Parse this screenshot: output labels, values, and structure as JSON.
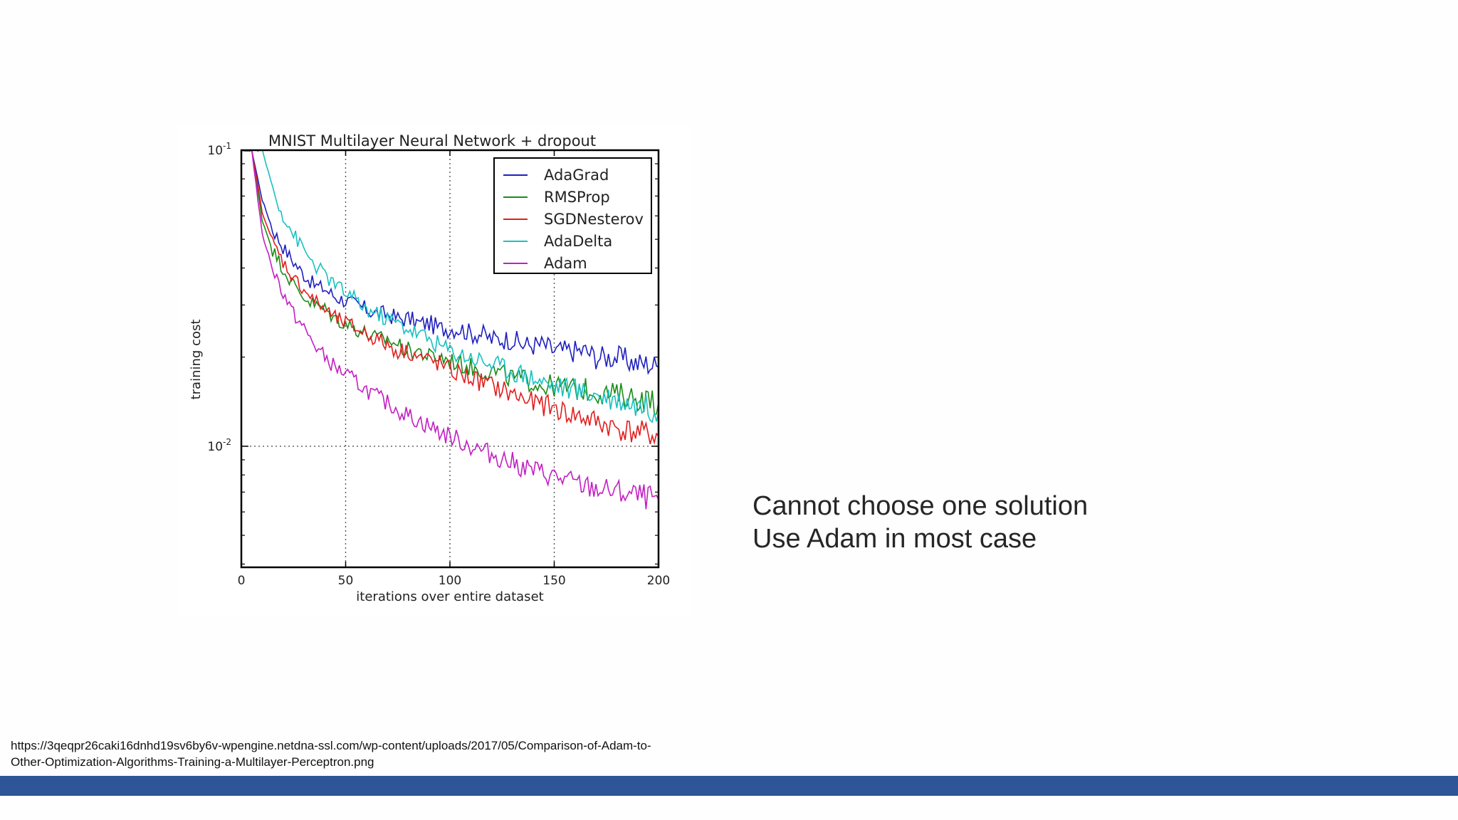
{
  "slide": {
    "bullets": [
      "Cannot choose one solution",
      "Use Adam in most case"
    ],
    "source_lines": [
      "https://3qeqpr26caki16dnhd19sv6by6v-wpengine.netdna-ssl.com/wp-content/uploads/2017/05/Comparison-of-Adam-to-",
      "Other-Optimization-Algorithms-Training-a-Multilayer-Perceptron.png"
    ],
    "colors": {
      "footer_bar": "#2d5597",
      "text": "#262626"
    }
  },
  "chart_data": {
    "type": "line",
    "title": "MNIST Multilayer Neural Network + dropout",
    "xlabel": "iterations over entire dataset",
    "ylabel": "training cost",
    "xlim": [
      0,
      200
    ],
    "ylim": [
      0.0039,
      0.1
    ],
    "yscale": "log",
    "x_ticks": [
      0,
      50,
      100,
      150,
      200
    ],
    "x_tick_labels": [
      "0",
      "50",
      "100",
      "150",
      "200"
    ],
    "y_ticks": [
      0.1,
      0.01
    ],
    "y_tick_labels": [
      {
        "base": "10",
        "exp": "-1"
      },
      {
        "base": "10",
        "exp": "-2"
      }
    ],
    "grid": true,
    "legend_position": "top-right",
    "x": [
      0,
      5,
      10,
      15,
      20,
      25,
      30,
      35,
      40,
      45,
      50,
      55,
      60,
      65,
      70,
      75,
      80,
      85,
      90,
      95,
      100,
      105,
      110,
      115,
      120,
      125,
      130,
      135,
      140,
      145,
      150,
      155,
      160,
      165,
      170,
      175,
      180,
      185,
      190,
      195,
      200
    ],
    "series": [
      {
        "name": "AdaGrad",
        "color": "#1f1fbf",
        "values": [
          0.1,
          0.1,
          0.068,
          0.054,
          0.047,
          0.042,
          0.038,
          0.035,
          0.034,
          0.032,
          0.031,
          0.03,
          0.029,
          0.028,
          0.028,
          0.027,
          0.027,
          0.026,
          0.026,
          0.025,
          0.025,
          0.025,
          0.024,
          0.024,
          0.023,
          0.023,
          0.023,
          0.022,
          0.022,
          0.022,
          0.021,
          0.021,
          0.021,
          0.021,
          0.02,
          0.02,
          0.02,
          0.0195,
          0.019,
          0.019,
          0.0185
        ]
      },
      {
        "name": "RMSProp",
        "color": "#1a8c1a",
        "values": [
          0.1,
          0.1,
          0.058,
          0.046,
          0.04,
          0.035,
          0.032,
          0.03,
          0.029,
          0.027,
          0.026,
          0.025,
          0.024,
          0.023,
          0.023,
          0.022,
          0.021,
          0.021,
          0.02,
          0.02,
          0.0195,
          0.019,
          0.0185,
          0.018,
          0.018,
          0.0175,
          0.017,
          0.0168,
          0.0165,
          0.016,
          0.016,
          0.0158,
          0.0156,
          0.0155,
          0.0153,
          0.015,
          0.015,
          0.0148,
          0.0145,
          0.0143,
          0.014
        ]
      },
      {
        "name": "SGDNesterov",
        "color": "#e01e1e",
        "values": [
          0.1,
          0.1,
          0.062,
          0.049,
          0.042,
          0.037,
          0.034,
          0.031,
          0.029,
          0.027,
          0.026,
          0.025,
          0.024,
          0.023,
          0.022,
          0.021,
          0.021,
          0.02,
          0.0195,
          0.019,
          0.018,
          0.0175,
          0.017,
          0.0165,
          0.016,
          0.0155,
          0.015,
          0.0145,
          0.014,
          0.0138,
          0.0135,
          0.013,
          0.0127,
          0.0124,
          0.0121,
          0.0118,
          0.0115,
          0.0113,
          0.0111,
          0.011,
          0.0108
        ]
      },
      {
        "name": "AdaDelta",
        "color": "#19c0c0",
        "values": [
          0.1,
          0.1,
          0.1,
          0.075,
          0.06,
          0.052,
          0.046,
          0.041,
          0.038,
          0.035,
          0.033,
          0.031,
          0.029,
          0.028,
          0.027,
          0.026,
          0.025,
          0.024,
          0.023,
          0.022,
          0.021,
          0.0205,
          0.02,
          0.0195,
          0.019,
          0.0185,
          0.018,
          0.0175,
          0.017,
          0.0165,
          0.016,
          0.0158,
          0.0155,
          0.0152,
          0.015,
          0.0147,
          0.0144,
          0.0141,
          0.0138,
          0.0135,
          0.013
        ]
      },
      {
        "name": "Adam",
        "color": "#c21fc2",
        "values": [
          0.1,
          0.1,
          0.052,
          0.04,
          0.033,
          0.028,
          0.025,
          0.022,
          0.02,
          0.0185,
          0.0175,
          0.0165,
          0.0155,
          0.0147,
          0.014,
          0.0133,
          0.0127,
          0.0122,
          0.0117,
          0.0112,
          0.0108,
          0.0104,
          0.01,
          0.0097,
          0.0094,
          0.0091,
          0.0088,
          0.0085,
          0.0083,
          0.0081,
          0.0079,
          0.0077,
          0.0075,
          0.0073,
          0.0072,
          0.0071,
          0.007,
          0.0069,
          0.0068,
          0.0067,
          0.0066
        ]
      }
    ]
  }
}
